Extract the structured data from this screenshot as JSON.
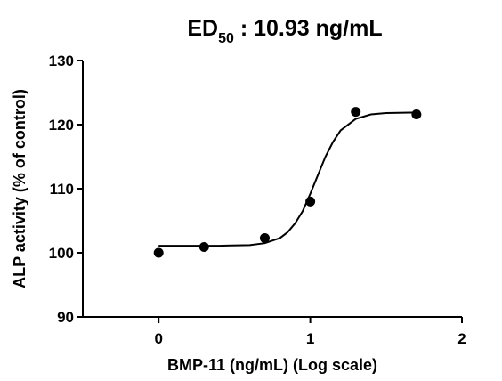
{
  "chart_data": {
    "type": "scatter",
    "title": {
      "text": "ED",
      "subscript": "50",
      "rest": " : 10.93 ng/mL"
    },
    "x_label": "BMP-11 (ng/mL) (Log scale)",
    "y_label": "ALP activity (% of control)",
    "x": [
      0,
      0.3,
      0.7,
      1.0,
      1.3,
      1.7
    ],
    "values": [
      100.0,
      100.9,
      102.3,
      108.0,
      122.0,
      121.6
    ],
    "color": "#000000",
    "fit": {
      "x": [
        0,
        0.2,
        0.4,
        0.6,
        0.7,
        0.8,
        0.85,
        0.9,
        0.95,
        1.0,
        1.05,
        1.1,
        1.15,
        1.2,
        1.3,
        1.4,
        1.5,
        1.7
      ],
      "values": [
        101.1,
        101.1,
        101.1,
        101.2,
        101.5,
        102.3,
        103.2,
        104.6,
        106.5,
        109.2,
        112.1,
        115.0,
        117.3,
        119.1,
        120.9,
        121.6,
        121.8,
        121.9
      ]
    },
    "xlim": [
      -0.5,
      2
    ],
    "xticks": [
      0,
      1,
      2
    ],
    "ylim": [
      90,
      130
    ],
    "yticks": [
      90,
      100,
      110,
      120,
      130
    ],
    "grid": false
  }
}
